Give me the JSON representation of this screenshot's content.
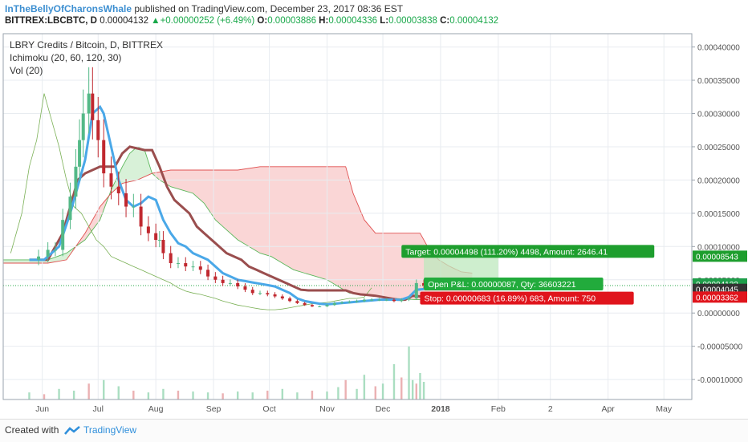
{
  "header": {
    "author": "InTheBellyOfCharonsWhale",
    "published": "published on TradingView.com, December 23, 2017 08:36 EST",
    "symbol": "BITTREX:LBCBTC, D",
    "last": "0.00004132",
    "change": "+0.00000252 (+6.49%)",
    "o_label": "O:",
    "o": "0.00003886",
    "h_label": "H:",
    "h": "0.00004336",
    "l_label": "L:",
    "l": "0.00003838",
    "c_label": "C:",
    "c": "0.00004132"
  },
  "legend": {
    "title": "LBRY Credits / Bitcoin, D, BITTREX",
    "ichimoku": "Ichimoku (20, 60, 120, 30)",
    "vol": "Vol (20)"
  },
  "footer": {
    "created": "Created with",
    "brand": "TradingView"
  },
  "colors": {
    "up": "#53b987",
    "down": "#c0282f",
    "conversion": "#4aa8e8",
    "base": "#9a4e4e",
    "cloud_bear": "#f5b5b5",
    "cloud_bull": "#b8e6b8",
    "lagging": "#7ab055",
    "target": "#1e9e2e",
    "stop": "#e0141c",
    "pnl": "#22ab3c"
  },
  "chart_data": {
    "type": "candlestick",
    "title": "LBRY Credits / Bitcoin, D, BITTREX",
    "yaxis_ticks": [
      "0.00040000",
      "0.00035000",
      "0.00030000",
      "0.00025000",
      "0.00020000",
      "0.00015000",
      "0.00010000",
      "0.00005000",
      "0.00000000",
      "-0.00005000",
      "-0.00010000"
    ],
    "ylim": [
      -0.00013,
      0.00042
    ],
    "xaxis_ticks": [
      {
        "label": "Jun",
        "day": 7
      },
      {
        "label": "Jul",
        "day": 37
      },
      {
        "label": "Aug",
        "day": 68
      },
      {
        "label": "Sep",
        "day": 99
      },
      {
        "label": "Oct",
        "day": 129
      },
      {
        "label": "Nov",
        "day": 160
      },
      {
        "label": "Dec",
        "day": 190
      },
      {
        "label": "2018",
        "day": 221
      },
      {
        "label": "Feb",
        "day": 252
      },
      {
        "label": "2",
        "day": 280
      },
      {
        "label": "Apr",
        "day": 311
      },
      {
        "label": "May",
        "day": 341
      }
    ],
    "xlim": [
      -14,
      356
    ],
    "close_series": [
      [
        0,
        8e-05
      ],
      [
        5,
        8.5e-05
      ],
      [
        10,
        9.5e-05
      ],
      [
        14,
        9.5e-05
      ],
      [
        18,
        0.00014
      ],
      [
        22,
        0.000175
      ],
      [
        25,
        0.00022
      ],
      [
        27,
        0.00026
      ],
      [
        29,
        0.0003
      ],
      [
        32,
        0.00033
      ],
      [
        34,
        0.00029
      ],
      [
        37,
        0.00026
      ],
      [
        40,
        0.00021
      ],
      [
        44,
        0.00019
      ],
      [
        48,
        0.00018
      ],
      [
        52,
        0.00016
      ],
      [
        56,
        0.00016
      ],
      [
        60,
        0.00013
      ],
      [
        64,
        0.00012
      ],
      [
        68,
        0.00011
      ],
      [
        70,
        0.00011
      ],
      [
        72,
        9e-05
      ],
      [
        76,
        7.5e-05
      ],
      [
        80,
        7.5e-05
      ],
      [
        84,
        7e-05
      ],
      [
        88,
        7e-05
      ],
      [
        92,
        6.5e-05
      ],
      [
        96,
        5.5e-05
      ],
      [
        100,
        5e-05
      ],
      [
        104,
        4.5e-05
      ],
      [
        108,
        4.5e-05
      ],
      [
        112,
        4e-05
      ],
      [
        116,
        3.5e-05
      ],
      [
        120,
        3e-05
      ],
      [
        124,
        3e-05
      ],
      [
        128,
        2.8e-05
      ],
      [
        132,
        2.5e-05
      ],
      [
        136,
        2.2e-05
      ],
      [
        140,
        1.8e-05
      ],
      [
        144,
        1.5e-05
      ],
      [
        148,
        1.2e-05
      ],
      [
        152,
        1e-05
      ],
      [
        156,
        1e-05
      ],
      [
        160,
        1.2e-05
      ],
      [
        164,
        1.5e-05
      ],
      [
        168,
        1.6e-05
      ],
      [
        172,
        1.7e-05
      ],
      [
        176,
        1.8e-05
      ],
      [
        180,
        2e-05
      ],
      [
        184,
        2e-05
      ],
      [
        188,
        2e-05
      ],
      [
        192,
        2e-05
      ],
      [
        196,
        1.8e-05
      ],
      [
        200,
        2e-05
      ],
      [
        204,
        2.2e-05
      ],
      [
        208,
        4.5e-05
      ],
      [
        212,
        4.132e-05
      ]
    ],
    "conversion_line": [
      [
        0,
        8e-05
      ],
      [
        8,
        8e-05
      ],
      [
        16,
        0.0001
      ],
      [
        22,
        0.00015
      ],
      [
        26,
        0.00019
      ],
      [
        30,
        0.00023
      ],
      [
        34,
        0.0003
      ],
      [
        38,
        0.00031
      ],
      [
        40,
        0.0003
      ],
      [
        44,
        0.00025
      ],
      [
        48,
        0.0002
      ],
      [
        52,
        0.00017
      ],
      [
        56,
        0.00016
      ],
      [
        60,
        0.000165
      ],
      [
        64,
        0.000175
      ],
      [
        68,
        0.00017
      ],
      [
        72,
        0.00014
      ],
      [
        76,
        0.00012
      ],
      [
        80,
        0.000105
      ],
      [
        84,
        0.0001
      ],
      [
        88,
        9e-05
      ],
      [
        92,
        8.5e-05
      ],
      [
        96,
        8e-05
      ],
      [
        100,
        7e-05
      ],
      [
        104,
        6e-05
      ],
      [
        108,
        5.5e-05
      ],
      [
        112,
        5e-05
      ],
      [
        116,
        4.8e-05
      ],
      [
        120,
        4.6e-05
      ],
      [
        124,
        4.4e-05
      ],
      [
        128,
        4.2e-05
      ],
      [
        132,
        4e-05
      ],
      [
        136,
        3.5e-05
      ],
      [
        140,
        3e-05
      ],
      [
        144,
        2.2e-05
      ],
      [
        148,
        1.8e-05
      ],
      [
        152,
        1.6e-05
      ],
      [
        156,
        1.4e-05
      ],
      [
        160,
        1.3e-05
      ],
      [
        164,
        1.4e-05
      ],
      [
        168,
        1.5e-05
      ],
      [
        172,
        1.6e-05
      ],
      [
        176,
        1.7e-05
      ],
      [
        180,
        1.8e-05
      ],
      [
        184,
        1.9e-05
      ],
      [
        188,
        2e-05
      ],
      [
        192,
        2e-05
      ],
      [
        196,
        2e-05
      ],
      [
        200,
        2e-05
      ],
      [
        204,
        2.4e-05
      ],
      [
        208,
        3.5e-05
      ],
      [
        212,
        3.6e-05
      ]
    ],
    "base_line": [
      [
        0,
        8e-05
      ],
      [
        10,
        8e-05
      ],
      [
        18,
        0.00012
      ],
      [
        22,
        0.00016
      ],
      [
        26,
        0.0002
      ],
      [
        30,
        0.00021
      ],
      [
        38,
        0.00022
      ],
      [
        46,
        0.00022
      ],
      [
        50,
        0.00024
      ],
      [
        54,
        0.00025
      ],
      [
        62,
        0.000245
      ],
      [
        66,
        0.000245
      ],
      [
        70,
        0.00022
      ],
      [
        74,
        0.00019
      ],
      [
        78,
        0.00017
      ],
      [
        82,
        0.00016
      ],
      [
        86,
        0.00015
      ],
      [
        90,
        0.00013
      ],
      [
        94,
        0.00012
      ],
      [
        98,
        0.00011
      ],
      [
        102,
        0.0001
      ],
      [
        106,
        9e-05
      ],
      [
        110,
        8.5e-05
      ],
      [
        114,
        8e-05
      ],
      [
        118,
        7e-05
      ],
      [
        122,
        6.5e-05
      ],
      [
        126,
        6e-05
      ],
      [
        130,
        5.5e-05
      ],
      [
        134,
        5e-05
      ],
      [
        138,
        4.5e-05
      ],
      [
        142,
        4e-05
      ],
      [
        146,
        3.5e-05
      ],
      [
        150,
        3.4e-05
      ],
      [
        154,
        3.4e-05
      ],
      [
        158,
        3.4e-05
      ],
      [
        162,
        3.4e-05
      ],
      [
        166,
        3.4e-05
      ],
      [
        170,
        3.4e-05
      ],
      [
        174,
        3e-05
      ],
      [
        178,
        2.8e-05
      ],
      [
        182,
        2.7e-05
      ],
      [
        186,
        2.6e-05
      ],
      [
        190,
        2.4e-05
      ],
      [
        194,
        2.2e-05
      ],
      [
        198,
        2e-05
      ],
      [
        202,
        2e-05
      ],
      [
        206,
        2.6e-05
      ],
      [
        210,
        2.5e-05
      ],
      [
        214,
        2.5e-05
      ]
    ],
    "span_a": [
      [
        -14,
        8e-05
      ],
      [
        0,
        8e-05
      ],
      [
        10,
        8e-05
      ],
      [
        20,
        9e-05
      ],
      [
        30,
        0.00011
      ],
      [
        38,
        0.00014
      ],
      [
        44,
        0.000185
      ],
      [
        50,
        0.00022
      ],
      [
        54,
        0.00024
      ],
      [
        58,
        0.00025
      ],
      [
        62,
        0.000245
      ],
      [
        66,
        0.00021
      ],
      [
        70,
        0.0002
      ],
      [
        76,
        0.00019
      ],
      [
        82,
        0.000185
      ],
      [
        88,
        0.00018
      ],
      [
        94,
        0.000165
      ],
      [
        100,
        0.00014
      ],
      [
        106,
        0.000125
      ],
      [
        112,
        0.00011
      ],
      [
        118,
        0.0001
      ],
      [
        124,
        9e-05
      ],
      [
        130,
        8.5e-05
      ],
      [
        136,
        7.5e-05
      ],
      [
        142,
        6.5e-05
      ],
      [
        148,
        6e-05
      ],
      [
        154,
        5.5e-05
      ],
      [
        160,
        5e-05
      ],
      [
        166,
        4e-05
      ],
      [
        172,
        3e-05
      ],
      [
        178,
        2.8e-05
      ],
      [
        184,
        2.6e-05
      ],
      [
        190,
        2.4e-05
      ],
      [
        196,
        2.2e-05
      ],
      [
        202,
        2.1e-05
      ],
      [
        208,
        2e-05
      ],
      [
        214,
        2e-05
      ],
      [
        220,
        2e-05
      ],
      [
        226,
        2e-05
      ],
      [
        232,
        2e-05
      ],
      [
        238,
        2e-05
      ]
    ],
    "span_b": [
      [
        -14,
        7.5e-05
      ],
      [
        0,
        7.5e-05
      ],
      [
        10,
        7.5e-05
      ],
      [
        20,
        8e-05
      ],
      [
        30,
        0.00012
      ],
      [
        38,
        0.00016
      ],
      [
        44,
        0.00018
      ],
      [
        50,
        0.000195
      ],
      [
        58,
        0.0002
      ],
      [
        66,
        0.00021
      ],
      [
        76,
        0.000215
      ],
      [
        88,
        0.000215
      ],
      [
        100,
        0.000215
      ],
      [
        112,
        0.000215
      ],
      [
        124,
        0.00022
      ],
      [
        136,
        0.00022
      ],
      [
        148,
        0.00022
      ],
      [
        160,
        0.00022
      ],
      [
        170,
        0.00022
      ],
      [
        174,
        0.00018
      ],
      [
        180,
        0.00014
      ],
      [
        186,
        0.00012
      ],
      [
        192,
        0.00012
      ],
      [
        198,
        0.00012
      ],
      [
        204,
        0.00012
      ],
      [
        210,
        0.00012
      ],
      [
        214,
        0.0001
      ],
      [
        220,
        8e-05
      ],
      [
        226,
        7e-05
      ],
      [
        232,
        6.2e-05
      ],
      [
        238,
        6e-05
      ]
    ],
    "lagging_span": [
      [
        -10,
        9e-05
      ],
      [
        -4,
        0.00015
      ],
      [
        0,
        0.00022
      ],
      [
        4,
        0.00026
      ],
      [
        8,
        0.00033
      ],
      [
        12,
        0.00029
      ],
      [
        16,
        0.00025
      ],
      [
        20,
        0.0002
      ],
      [
        24,
        0.00016
      ],
      [
        28,
        0.00015
      ],
      [
        32,
        0.00013
      ],
      [
        36,
        0.00011
      ],
      [
        40,
        0.0001
      ],
      [
        44,
        8.5e-05
      ],
      [
        48,
        8e-05
      ],
      [
        52,
        7.5e-05
      ],
      [
        56,
        7e-05
      ],
      [
        60,
        6.5e-05
      ],
      [
        64,
        6e-05
      ],
      [
        68,
        5.5e-05
      ],
      [
        72,
        5e-05
      ],
      [
        76,
        4.5e-05
      ],
      [
        80,
        3.8e-05
      ],
      [
        84,
        3.3e-05
      ],
      [
        88,
        3e-05
      ],
      [
        92,
        2.8e-05
      ],
      [
        96,
        2.5e-05
      ],
      [
        100,
        2.2e-05
      ],
      [
        104,
        1.8e-05
      ],
      [
        108,
        1.5e-05
      ],
      [
        112,
        1.2e-05
      ],
      [
        116,
        1e-05
      ],
      [
        120,
        8e-06
      ],
      [
        124,
        6e-06
      ],
      [
        128,
        5e-06
      ],
      [
        132,
        5e-06
      ],
      [
        136,
        6e-06
      ],
      [
        140,
        8e-06
      ],
      [
        144,
        1e-05
      ],
      [
        148,
        1.2e-05
      ],
      [
        152,
        1.4e-05
      ],
      [
        156,
        1.5e-05
      ],
      [
        160,
        1.6e-05
      ],
      [
        164,
        1.8e-05
      ],
      [
        168,
        2e-05
      ],
      [
        172,
        2.2e-05
      ],
      [
        176,
        2.2e-05
      ],
      [
        180,
        2.4e-05
      ],
      [
        184,
        3.8e-05
      ]
    ],
    "volume_day": [
      0,
      8,
      16,
      24,
      32,
      40,
      48,
      56,
      64,
      72,
      80,
      88,
      96,
      104,
      112,
      120,
      128,
      136,
      144,
      152,
      160,
      166,
      170,
      176,
      180,
      186,
      190,
      196,
      200,
      204,
      206,
      208,
      210,
      212
    ],
    "volume_value": [
      8,
      6,
      12,
      10,
      18,
      22,
      15,
      10,
      8,
      12,
      10,
      9,
      8,
      7,
      9,
      8,
      10,
      12,
      8,
      10,
      9,
      14,
      22,
      12,
      28,
      15,
      18,
      40,
      25,
      60,
      22,
      18,
      30,
      20
    ],
    "annotations": {
      "target": "Target: 0.00004498 (111.20%) 4498, Amount: 2646.41",
      "pnl": "Open P&L: 0.00000087, Qty: 36603221",
      "stop": "Stop: 0.00000683 (16.89%) 683, Amount: 750"
    },
    "price_tags": [
      "0.00008543",
      "0.00004132",
      "0.00004045",
      "0.00003362"
    ],
    "price_levels": {
      "target": 8.543e-05,
      "last": 4.132e-05,
      "entry": 4.045e-05,
      "stop": 3.362e-05
    },
    "position": {
      "start_day": 212,
      "end_day": 252
    }
  }
}
